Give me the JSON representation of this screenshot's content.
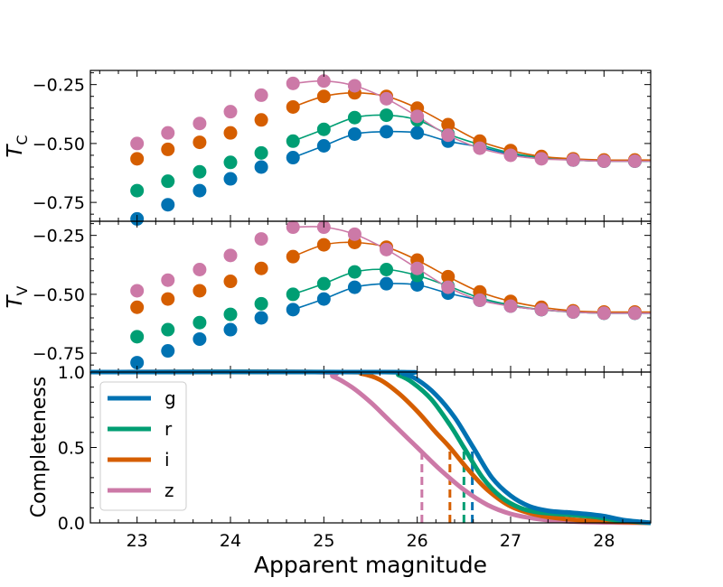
{
  "colors": {
    "g": "#0072b2",
    "r": "#009e73",
    "i": "#d55e00",
    "z": "#cc79a7"
  },
  "chart_data": [
    {
      "panel": "top",
      "type": "scatter",
      "ylabel_main": "T",
      "ylabel_sub": "C",
      "xlim": [
        22.5,
        28.5
      ],
      "ylim": [
        -0.83,
        -0.19
      ],
      "y_inverted": true,
      "yticks": [
        -0.25,
        -0.5,
        -0.75
      ],
      "ytick_labels": [
        "−0.25",
        "−0.50",
        "−0.75"
      ],
      "x": [
        23.0,
        23.33,
        23.67,
        24.0,
        24.33,
        24.67,
        25.0,
        25.33,
        25.67,
        26.0,
        26.33,
        26.67,
        27.0,
        27.33,
        27.67,
        28.0,
        28.33
      ],
      "series": [
        {
          "name": "g",
          "values": [
            -0.82,
            -0.76,
            -0.7,
            -0.65,
            -0.6,
            -0.56,
            -0.51,
            -0.46,
            -0.45,
            -0.455,
            -0.49,
            -0.515,
            -0.545,
            -0.56,
            -0.57,
            -0.575,
            -0.575
          ],
          "fit_start": 5
        },
        {
          "name": "r",
          "values": [
            -0.7,
            -0.66,
            -0.62,
            -0.58,
            -0.54,
            -0.49,
            -0.44,
            -0.39,
            -0.38,
            -0.4,
            -0.46,
            -0.505,
            -0.54,
            -0.56,
            -0.57,
            -0.575,
            -0.575
          ],
          "fit_start": 5
        },
        {
          "name": "i",
          "values": [
            -0.565,
            -0.525,
            -0.495,
            -0.455,
            -0.4,
            -0.345,
            -0.3,
            -0.285,
            -0.3,
            -0.35,
            -0.42,
            -0.49,
            -0.53,
            -0.555,
            -0.565,
            -0.57,
            -0.57
          ],
          "fit_start": 5
        },
        {
          "name": "z",
          "values": [
            -0.5,
            -0.455,
            -0.415,
            -0.365,
            -0.295,
            -0.245,
            -0.235,
            -0.255,
            -0.31,
            -0.385,
            -0.465,
            -0.52,
            -0.55,
            -0.565,
            -0.57,
            -0.575,
            -0.575
          ],
          "fit_start": 5
        }
      ]
    },
    {
      "panel": "middle",
      "type": "scatter",
      "ylabel_main": "T",
      "ylabel_sub": "V",
      "xlim": [
        22.5,
        28.5
      ],
      "ylim": [
        -0.83,
        -0.19
      ],
      "y_inverted": true,
      "yticks": [
        -0.25,
        -0.5,
        -0.75
      ],
      "ytick_labels": [
        "−0.25",
        "−0.50",
        "−0.75"
      ],
      "x": [
        23.0,
        23.33,
        23.67,
        24.0,
        24.33,
        24.67,
        25.0,
        25.33,
        25.67,
        26.0,
        26.33,
        26.67,
        27.0,
        27.33,
        27.67,
        28.0,
        28.33
      ],
      "series": [
        {
          "name": "g",
          "values": [
            -0.79,
            -0.74,
            -0.69,
            -0.65,
            -0.6,
            -0.565,
            -0.52,
            -0.47,
            -0.455,
            -0.46,
            -0.495,
            -0.525,
            -0.55,
            -0.565,
            -0.575,
            -0.58,
            -0.58
          ],
          "fit_start": 5
        },
        {
          "name": "r",
          "values": [
            -0.68,
            -0.65,
            -0.62,
            -0.585,
            -0.54,
            -0.5,
            -0.455,
            -0.405,
            -0.395,
            -0.42,
            -0.465,
            -0.515,
            -0.545,
            -0.565,
            -0.575,
            -0.58,
            -0.58
          ],
          "fit_start": 5
        },
        {
          "name": "i",
          "values": [
            -0.555,
            -0.52,
            -0.485,
            -0.445,
            -0.39,
            -0.34,
            -0.29,
            -0.28,
            -0.3,
            -0.355,
            -0.425,
            -0.49,
            -0.53,
            -0.555,
            -0.57,
            -0.575,
            -0.575
          ],
          "fit_start": 5
        },
        {
          "name": "z",
          "values": [
            -0.485,
            -0.44,
            -0.395,
            -0.335,
            -0.265,
            -0.215,
            -0.215,
            -0.245,
            -0.31,
            -0.39,
            -0.47,
            -0.525,
            -0.55,
            -0.565,
            -0.575,
            -0.58,
            -0.58
          ],
          "fit_start": 5
        }
      ]
    },
    {
      "panel": "bottom",
      "type": "line",
      "ylabel": "Completeness",
      "xlabel": "Apparent magnitude",
      "xlim": [
        22.5,
        28.5
      ],
      "ylim": [
        0.0,
        1.0
      ],
      "yticks": [
        0.0,
        0.5,
        1.0
      ],
      "ytick_labels": [
        "0.0",
        "0.5",
        "1.0"
      ],
      "xticks": [
        23,
        24,
        25,
        26,
        27,
        28
      ],
      "xtick_labels": [
        "23",
        "24",
        "25",
        "26",
        "27",
        "28"
      ],
      "legend_position": "top-left",
      "grid": false,
      "series": [
        {
          "name": "g",
          "x": [
            22.5,
            25.7,
            25.85,
            26.0,
            26.2,
            26.4,
            26.6,
            26.8,
            27.0,
            27.2,
            27.4,
            27.6,
            27.8,
            28.0,
            28.2,
            28.5
          ],
          "values": [
            1.0,
            1.0,
            0.99,
            0.95,
            0.85,
            0.7,
            0.5,
            0.3,
            0.18,
            0.11,
            0.08,
            0.07,
            0.06,
            0.045,
            0.02,
            0.0
          ],
          "threshold": 26.59
        },
        {
          "name": "r",
          "x": [
            22.5,
            25.65,
            25.8,
            25.95,
            26.15,
            26.35,
            26.5,
            26.7,
            26.9,
            27.1,
            27.3,
            27.6,
            27.9,
            28.1,
            28.5
          ],
          "values": [
            1.0,
            1.0,
            0.98,
            0.93,
            0.82,
            0.65,
            0.5,
            0.3,
            0.17,
            0.1,
            0.07,
            0.055,
            0.04,
            0.02,
            0.0
          ],
          "threshold": 26.5
        },
        {
          "name": "i",
          "x": [
            22.5,
            25.2,
            25.4,
            25.6,
            25.8,
            26.0,
            26.2,
            26.35,
            26.55,
            26.75,
            27.0,
            27.3,
            27.6,
            28.0,
            28.5
          ],
          "values": [
            1.0,
            1.0,
            0.99,
            0.95,
            0.86,
            0.74,
            0.6,
            0.5,
            0.35,
            0.22,
            0.11,
            0.05,
            0.025,
            0.01,
            0.0
          ],
          "threshold": 26.35
        },
        {
          "name": "z",
          "x": [
            22.5,
            24.9,
            25.1,
            25.3,
            25.5,
            25.7,
            25.9,
            26.05,
            26.25,
            26.5,
            26.75,
            27.0,
            27.3,
            27.6,
            28.0,
            28.5
          ],
          "values": [
            1.0,
            1.0,
            0.97,
            0.9,
            0.8,
            0.68,
            0.56,
            0.47,
            0.35,
            0.22,
            0.12,
            0.06,
            0.025,
            0.01,
            0.003,
            0.0
          ],
          "threshold": 26.05
        }
      ]
    }
  ]
}
